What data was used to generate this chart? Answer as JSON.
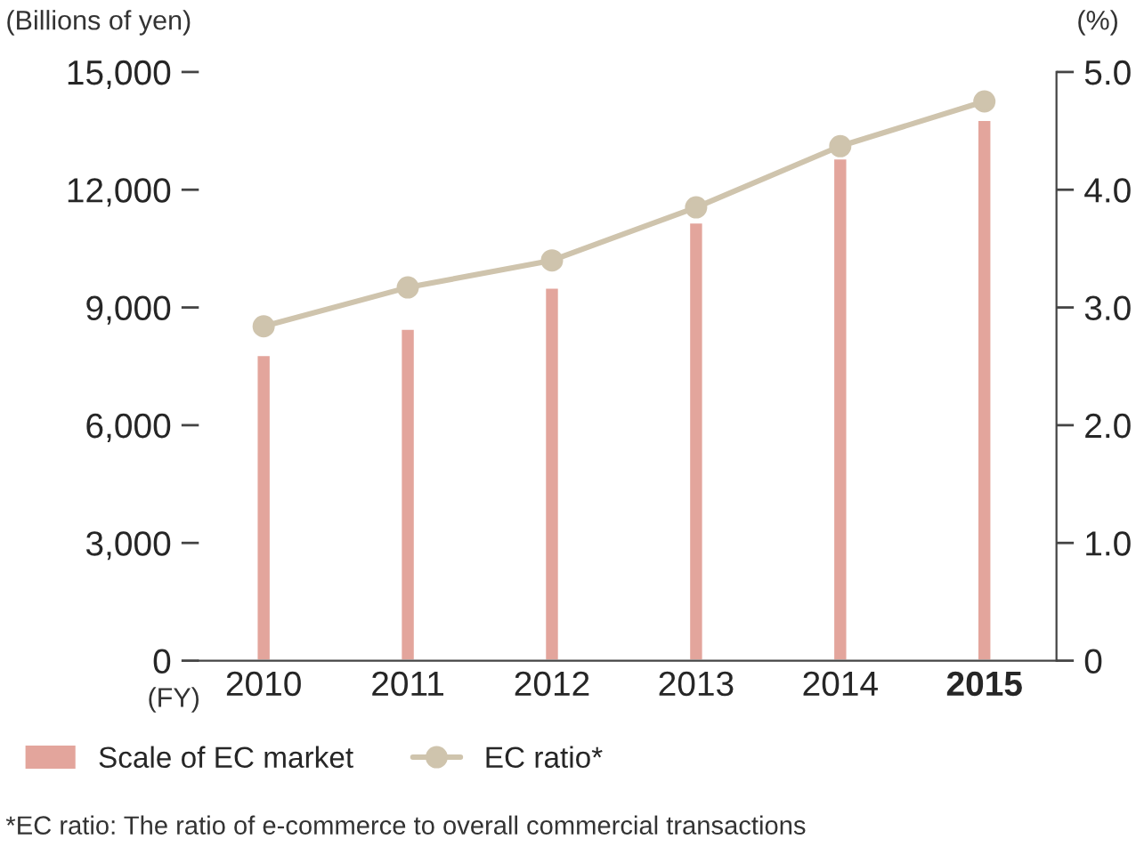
{
  "chart_data": {
    "type": "bar",
    "categories": [
      "2010",
      "2011",
      "2012",
      "2013",
      "2014",
      "2015"
    ],
    "xlabel": "(FY)",
    "ylabel": "(Billions of yen)",
    "y2label": "(%)",
    "series": [
      {
        "name": "Scale of EC market",
        "color": "#e3a59c",
        "values": [
          7790,
          8460,
          9510,
          11170,
          12800,
          13780
        ]
      },
      {
        "name": "EC ratio*",
        "type": "line",
        "axis": "y2",
        "color": "#cfc4ad",
        "marker": "circle",
        "values": [
          2.84,
          3.17,
          3.4,
          3.85,
          4.37,
          4.75
        ]
      }
    ],
    "ylim": [
      0,
      15000
    ],
    "yticks": [
      {
        "value": 0,
        "label": "0"
      },
      {
        "value": 3000,
        "label": "3,000"
      },
      {
        "value": 6000,
        "label": "6,000"
      },
      {
        "value": 9000,
        "label": "9,000"
      },
      {
        "value": 12000,
        "label": "12,000"
      },
      {
        "value": 15000,
        "label": "15,000"
      }
    ],
    "y2lim": [
      0,
      5
    ],
    "y2ticks": [
      {
        "value": 0,
        "label": "0"
      },
      {
        "value": 1,
        "label": "1.0"
      },
      {
        "value": 2,
        "label": "2.0"
      },
      {
        "value": 3,
        "label": "3.0"
      },
      {
        "value": 4,
        "label": "4.0"
      },
      {
        "value": 5,
        "label": "5.0"
      }
    ],
    "grid": false,
    "legend": "bottom left",
    "annotations": [
      "*EC ratio: The ratio of e-commerce to overall commercial transactions"
    ]
  }
}
